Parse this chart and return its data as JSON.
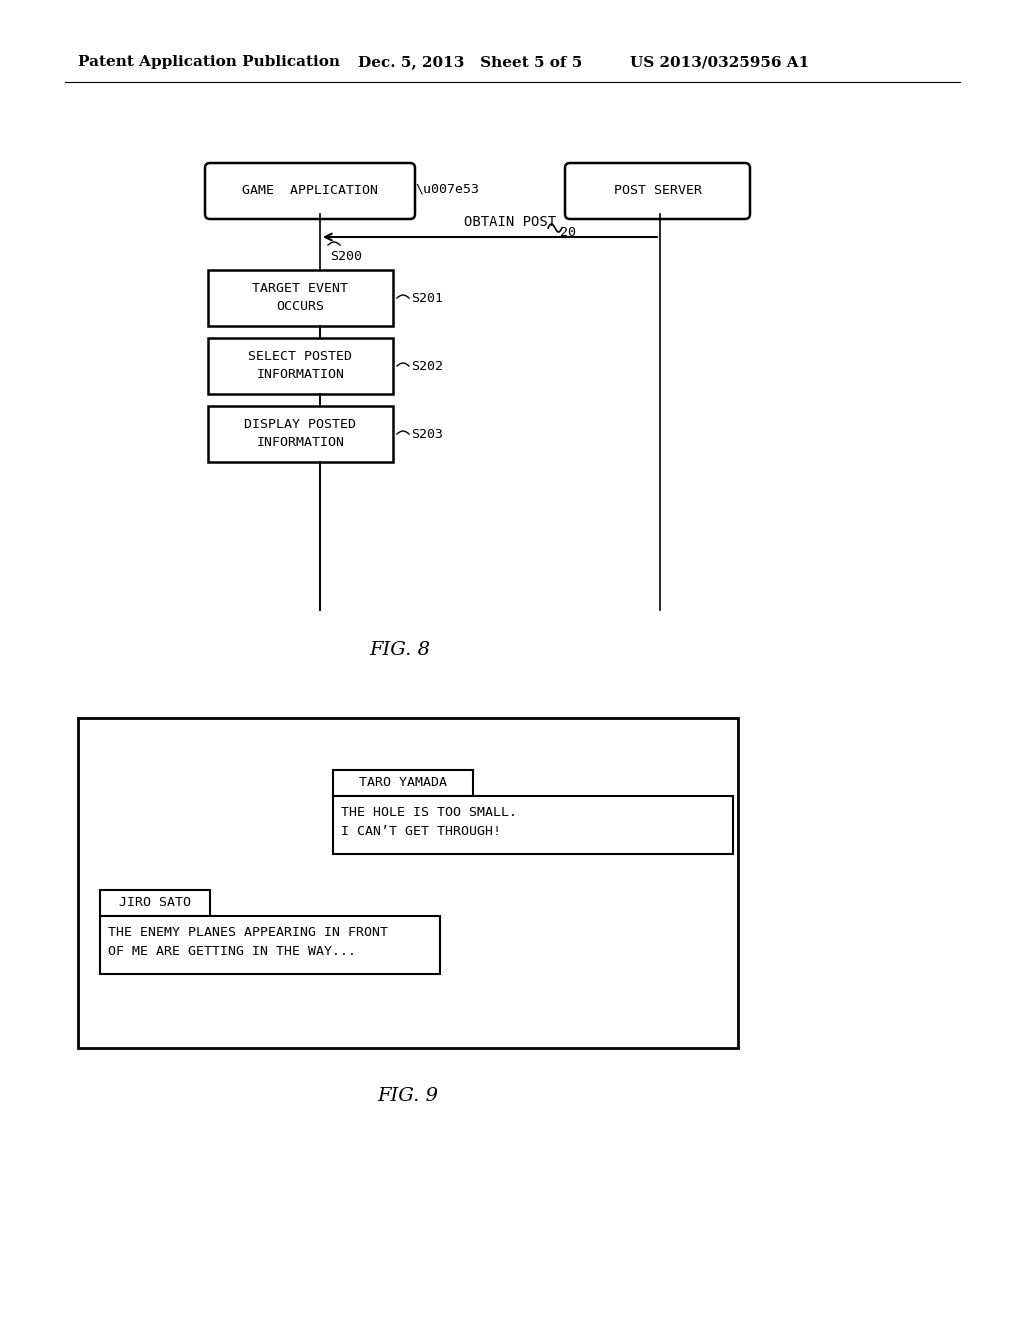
{
  "background_color": "#ffffff",
  "header_left": "Patent Application Publication",
  "header_mid": "Dec. 5, 2013   Sheet 5 of 5",
  "header_right": "US 2013/0325956 A1",
  "fig8_label": "FIG. 8",
  "fig9_label": "FIG. 9",
  "game_app_label": "GAME  APPLICATION",
  "game_app_ref": "53",
  "post_server_label": "POST SERVER",
  "post_server_ref": "20",
  "s200_label": "S200",
  "obtain_post_label": "OBTAIN POST",
  "steps": [
    {
      "label": "TARGET EVENT\nOCCURS",
      "ref": "S201"
    },
    {
      "label": "SELECT POSTED\nINFORMATION",
      "ref": "S202"
    },
    {
      "label": "DISPLAY POSTED\nINFORMATION",
      "ref": "S203"
    }
  ],
  "taro_name": "TARO YAMADA",
  "taro_msg1": "THE HOLE IS TOO SMALL.",
  "taro_msg2": "I CAN’T GET THROUGH!",
  "jiro_name": "JIRO SATO",
  "jiro_msg1": "THE ENEMY PLANES APPEARING IN FRONT",
  "jiro_msg2": "OF ME ARE GETTING IN THE WAY..."
}
